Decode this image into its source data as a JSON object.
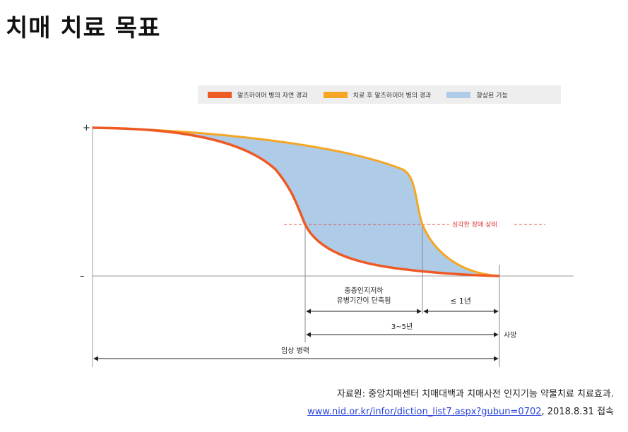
{
  "title": "치매 치료 목표",
  "legend": {
    "natural": {
      "label": "알츠하이머 병의 자연 경과",
      "color": "#ee5a24"
    },
    "treated": {
      "label": "치료 후 알츠하이머 병의 경과",
      "color": "#f5a623"
    },
    "improved": {
      "label": "향상된 기능",
      "color": "#aecbe8"
    }
  },
  "axis": {
    "plus": "+",
    "minus": "–"
  },
  "labels": {
    "severe_line": "심각한 장애 상태",
    "shortened_1": "중증인지저하",
    "shortened_2": "유병기간이 단축됨",
    "le_one_year": "≤ 1년",
    "three_to_five": "3~5년",
    "death": "사망",
    "clinical_course": "임상 병력"
  },
  "source": {
    "line1": "자료원: 중앙치매센터 치매대백과 치매사전 인지기능 약물치료 치료효과.",
    "link": "www.nid.or.kr/infor/diction_list7.aspx?gubun=0702",
    "suffix": ", 2018.8.31 접속"
  }
}
